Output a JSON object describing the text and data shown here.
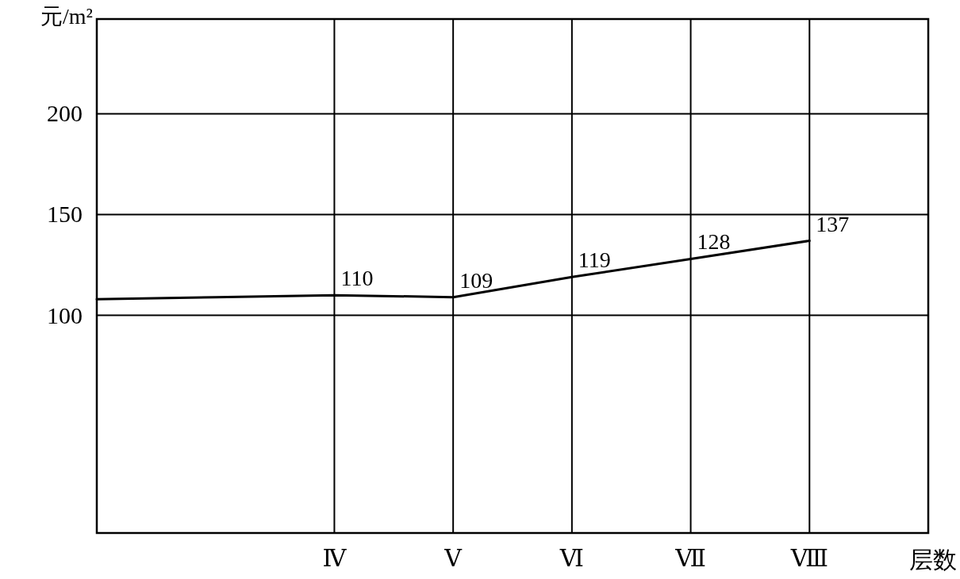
{
  "chart_data": {
    "type": "line",
    "ylabel": "元/m²",
    "xlabel": "层数",
    "categories": [
      null,
      null,
      "Ⅳ",
      "Ⅴ",
      "Ⅵ",
      "Ⅶ",
      "Ⅷ",
      null
    ],
    "ylim": [
      -8,
      247
    ],
    "yticks": [
      100,
      150,
      200
    ],
    "grid": true,
    "marker": "none",
    "line_style": "solid",
    "series": [
      {
        "color": "#000000",
        "values": [
          108,
          109,
          110,
          109,
          119,
          128,
          137,
          null
        ],
        "value_labels": [
          null,
          null,
          "110",
          "109",
          "119",
          "128",
          "137",
          null
        ]
      }
    ]
  }
}
